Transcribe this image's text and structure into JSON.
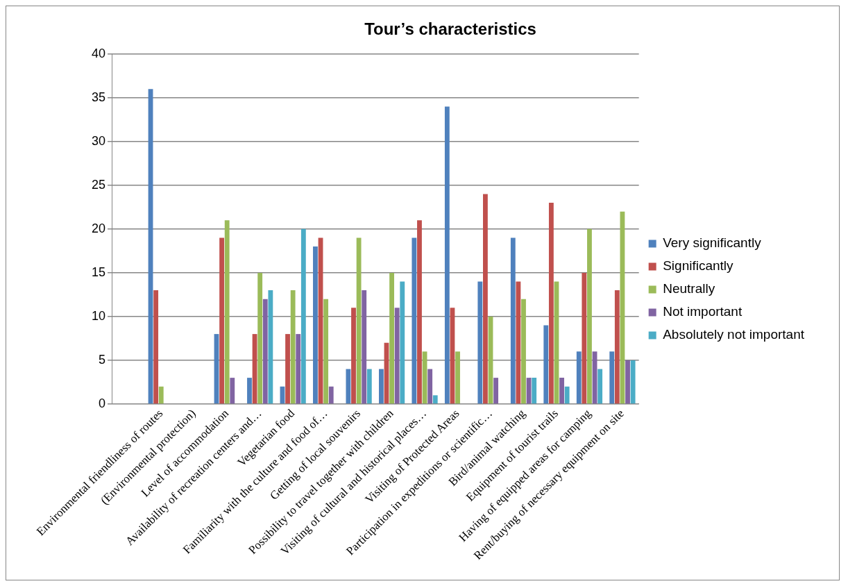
{
  "chart_data": {
    "type": "bar",
    "title": "Tour’s characteristics",
    "categories": [
      null,
      "Environmental friendliness of routes",
      "(Environmental protection)",
      "Level of accommodation",
      "Availability of recreation centers and…",
      "Vegetarian food",
      "Familiarity with the culture and food of…",
      "Getting of local souvenirs",
      "Possibility to travel together with children",
      "Visiting of cultural and historical places…",
      "Visiting of Protected Areas",
      "Participation in expeditions or scientific…",
      "Bird/animal watching",
      "Equipment of tourist trails",
      "Having of equipped areas for camping",
      "Rent/buying of necessary equipment on site"
    ],
    "series": [
      {
        "name": "Very significantly",
        "color": "#4f81bd",
        "values": [
          null,
          36,
          null,
          8,
          3,
          2,
          18,
          4,
          4,
          19,
          34,
          14,
          19,
          9,
          6,
          6
        ]
      },
      {
        "name": "Significantly",
        "color": "#c0504d",
        "values": [
          null,
          13,
          null,
          19,
          8,
          8,
          19,
          11,
          7,
          21,
          11,
          24,
          14,
          23,
          15,
          13
        ]
      },
      {
        "name": "Neutrally",
        "color": "#9bbb59",
        "values": [
          null,
          2,
          null,
          21,
          15,
          13,
          12,
          19,
          15,
          6,
          6,
          10,
          12,
          14,
          20,
          22
        ]
      },
      {
        "name": "Not important",
        "color": "#8064a2",
        "values": [
          null,
          null,
          null,
          3,
          12,
          8,
          2,
          13,
          11,
          4,
          null,
          3,
          3,
          3,
          6,
          5
        ]
      },
      {
        "name": "Absolutely not important",
        "color": "#4bacc6",
        "values": [
          null,
          null,
          null,
          null,
          13,
          20,
          null,
          4,
          14,
          1,
          null,
          null,
          3,
          2,
          4,
          5
        ]
      }
    ],
    "ylim": [
      0,
      40
    ],
    "yticks": [
      0,
      5,
      10,
      15,
      20,
      25,
      30,
      35,
      40
    ],
    "grid": "y",
    "legend": "right"
  }
}
